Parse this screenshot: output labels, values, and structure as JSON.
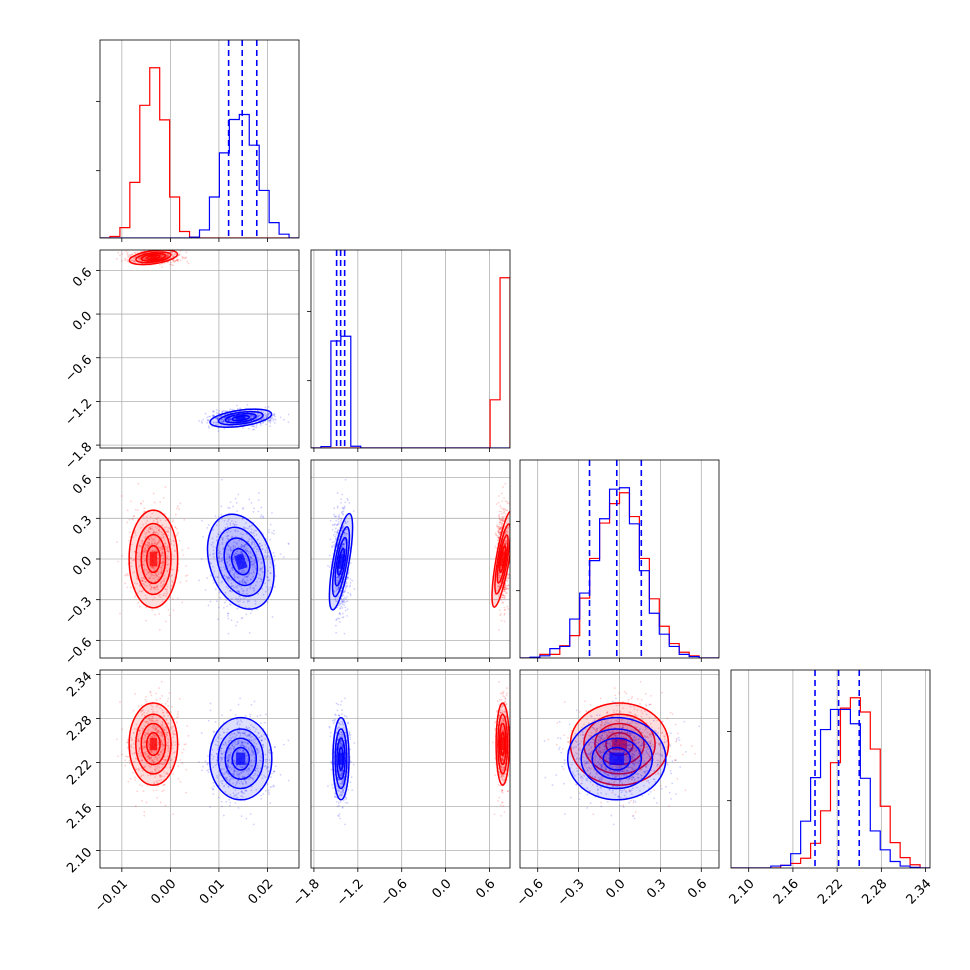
{
  "chart_data": {
    "type": "corner",
    "grid": true,
    "colors": {
      "red": "#ff0000",
      "blue": "#0000ff"
    },
    "parameters": [
      {
        "ticks": [
          "−0.01",
          "0.00",
          "0.01",
          "0.02"
        ],
        "values": [
          -0.01,
          0.0,
          0.01,
          0.02
        ],
        "range": [
          -0.0145,
          0.0265
        ]
      },
      {
        "ticks": [
          "−1.8",
          "−1.2",
          "−0.6",
          "0.0",
          "0.6"
        ],
        "values": [
          -1.8,
          -1.2,
          -0.6,
          0.0,
          0.6
        ],
        "range": [
          -1.84,
          0.88
        ]
      },
      {
        "ticks": [
          "−0.6",
          "−0.3",
          "0.0",
          "0.3",
          "0.6"
        ],
        "values": [
          -0.6,
          -0.3,
          0.0,
          0.3,
          0.6
        ],
        "range": [
          -0.73,
          0.73
        ]
      },
      {
        "ticks": [
          "2.10",
          "2.16",
          "2.22",
          "2.28",
          "2.34"
        ],
        "values": [
          2.1,
          2.16,
          2.22,
          2.28,
          2.34
        ],
        "range": [
          2.076,
          2.346
        ]
      }
    ],
    "series": [
      {
        "color": "red",
        "mean": [
          -0.0035,
          0.78,
          0.0,
          2.245
        ],
        "sigma": [
          0.0025,
          0.045,
          0.18,
          0.028
        ]
      },
      {
        "color": "blue",
        "mean": [
          0.0145,
          -1.43,
          -0.02,
          2.225
        ],
        "sigma": [
          0.0032,
          0.055,
          0.18,
          0.028
        ],
        "quantiles": [
          [
            0.012,
            0.0148,
            0.0178
          ],
          [
            -1.49,
            -1.435,
            -1.38
          ],
          [
            -0.22,
            -0.02,
            0.16
          ],
          [
            2.19,
            2.222,
            2.25
          ]
        ]
      }
    ]
  }
}
